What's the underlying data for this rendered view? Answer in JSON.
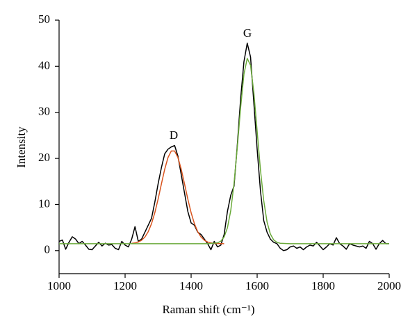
{
  "chart_data": {
    "type": "line",
    "xlabel": "Raman shift (cm⁻¹)",
    "ylabel": "Intensity",
    "annotations": [
      "D",
      "G"
    ],
    "xlim": [
      1000,
      2000
    ],
    "xticks": [
      1000,
      1200,
      1400,
      1600,
      1800,
      2000
    ],
    "ylim": [
      -5,
      50
    ],
    "yticks": [
      0,
      10,
      20,
      30,
      40,
      50
    ],
    "grid": false,
    "series": [
      {
        "color": "#000000",
        "x": [
          1000,
          1010,
          1020,
          1030,
          1040,
          1050,
          1060,
          1070,
          1080,
          1090,
          1100,
          1110,
          1120,
          1130,
          1140,
          1150,
          1160,
          1170,
          1180,
          1190,
          1200,
          1210,
          1220,
          1230,
          1240,
          1250,
          1260,
          1270,
          1280,
          1290,
          1300,
          1310,
          1320,
          1330,
          1340,
          1350,
          1360,
          1370,
          1380,
          1390,
          1400,
          1410,
          1420,
          1430,
          1440,
          1450,
          1460,
          1470,
          1480,
          1490,
          1500,
          1510,
          1520,
          1530,
          1540,
          1550,
          1560,
          1570,
          1580,
          1590,
          1600,
          1610,
          1620,
          1630,
          1640,
          1650,
          1660,
          1670,
          1680,
          1690,
          1700,
          1710,
          1720,
          1730,
          1740,
          1750,
          1760,
          1770,
          1780,
          1790,
          1800,
          1810,
          1820,
          1830,
          1840,
          1850,
          1860,
          1870,
          1880,
          1890,
          1900,
          1910,
          1920,
          1930,
          1940,
          1950,
          1960,
          1970,
          1980,
          1990,
          2000
        ],
        "values": [
          2.0,
          2.3,
          0.3,
          1.8,
          3.0,
          2.5,
          1.5,
          2.0,
          1.2,
          0.3,
          0.2,
          1.0,
          1.8,
          1.0,
          1.6,
          1.2,
          1.3,
          0.5,
          0.2,
          2.0,
          1.2,
          0.8,
          2.5,
          5.2,
          2.0,
          2.5,
          4.0,
          5.5,
          7.0,
          10.5,
          14.5,
          18.0,
          21.0,
          22.0,
          22.5,
          22.8,
          20.5,
          16.5,
          12.5,
          8.5,
          6.0,
          5.5,
          4.0,
          3.5,
          2.5,
          1.5,
          0.2,
          2.0,
          0.8,
          1.2,
          3.5,
          8.5,
          12.0,
          14.0,
          23.0,
          33.0,
          41.0,
          45.0,
          42.0,
          32.0,
          22.0,
          13.0,
          6.5,
          4.0,
          2.5,
          1.8,
          1.5,
          0.5,
          0.0,
          0.2,
          0.8,
          1.0,
          0.5,
          0.8,
          0.2,
          0.8,
          1.2,
          1.0,
          1.8,
          1.0,
          0.2,
          0.8,
          1.5,
          1.2,
          2.8,
          1.5,
          1.0,
          0.3,
          1.5,
          1.2,
          1.0,
          0.8,
          1.0,
          0.5,
          2.0,
          1.5,
          0.3,
          1.5,
          2.2,
          1.5,
          1.5
        ]
      },
      {
        "color": "#d9541e",
        "x": [
          1220,
          1230,
          1240,
          1250,
          1260,
          1270,
          1280,
          1290,
          1300,
          1310,
          1320,
          1330,
          1340,
          1350,
          1360,
          1370,
          1380,
          1390,
          1400,
          1410,
          1420,
          1430,
          1440,
          1450,
          1460,
          1470,
          1480,
          1490,
          1500
        ],
        "values": [
          1.57,
          1.66,
          1.86,
          2.25,
          2.95,
          4.1,
          5.84,
          8.22,
          11.18,
          14.47,
          17.66,
          20.2,
          21.62,
          21.62,
          20.2,
          17.66,
          14.47,
          11.18,
          8.22,
          5.84,
          4.1,
          2.95,
          2.25,
          1.86,
          1.66,
          1.57,
          1.53,
          1.51,
          1.5
        ]
      },
      {
        "color": "#6aaa3a",
        "x": [
          1000,
          1400,
          1450,
          1480,
          1490,
          1500,
          1510,
          1520,
          1530,
          1540,
          1550,
          1560,
          1570,
          1580,
          1590,
          1600,
          1610,
          1620,
          1630,
          1640,
          1650,
          1660,
          1670,
          1700,
          2000
        ],
        "values": [
          1.5,
          1.5,
          1.5,
          1.68,
          2.05,
          2.97,
          4.97,
          8.67,
          14.6,
          22.5,
          31.1,
          38.3,
          41.7,
          40.2,
          34.3,
          25.9,
          17.5,
          10.8,
          6.2,
          3.6,
          2.33,
          1.79,
          1.59,
          1.5,
          1.5
        ]
      }
    ]
  }
}
